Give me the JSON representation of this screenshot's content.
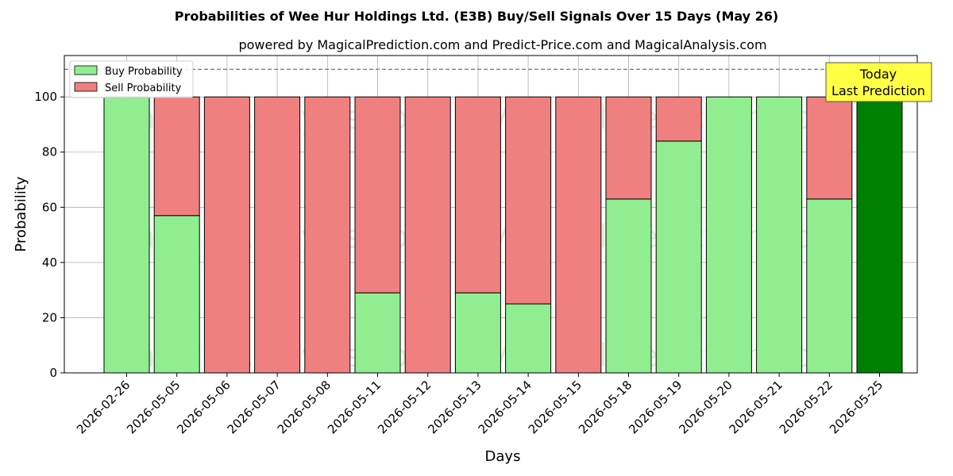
{
  "chart_data": {
    "type": "bar",
    "stacked": true,
    "title": "Probabilities of Wee Hur Holdings Ltd. (E3B) Buy/Sell Signals Over 15 Days (May 26)",
    "subtitle": "powered by MagicalPrediction.com and Predict-Price.com and MagicalAnalysis.com",
    "xlabel": "Days",
    "ylabel": "Probability",
    "ylim": [
      0,
      115
    ],
    "yticks": [
      0,
      20,
      40,
      60,
      80,
      100
    ],
    "grid": true,
    "legend_position": "top-left",
    "reference_line": 110,
    "categories": [
      "2026-02-26",
      "2026-05-05",
      "2026-05-06",
      "2026-05-07",
      "2026-05-08",
      "2026-05-11",
      "2026-05-12",
      "2026-05-13",
      "2026-05-14",
      "2026-05-15",
      "2026-05-18",
      "2026-05-19",
      "2026-05-20",
      "2026-05-21",
      "2026-05-22",
      "2026-05-25"
    ],
    "series": [
      {
        "name": "Buy Probability",
        "color": "#90ee90",
        "values": [
          100,
          57,
          0,
          0,
          0,
          29,
          0,
          29,
          25,
          0,
          63,
          84,
          100,
          100,
          63,
          100
        ]
      },
      {
        "name": "Sell Probability",
        "color": "#f08080",
        "values": [
          0,
          43,
          100,
          100,
          100,
          71,
          100,
          71,
          75,
          100,
          37,
          16,
          0,
          0,
          37,
          0
        ]
      }
    ],
    "highlight": {
      "index": 15,
      "color": "#008000"
    },
    "annotation": {
      "line1": "Today",
      "line2": "Last Prediction",
      "background": "#ffff44"
    },
    "watermarks": [
      "MagicalAnalysis.com",
      "MagicalPrediction.com"
    ]
  }
}
